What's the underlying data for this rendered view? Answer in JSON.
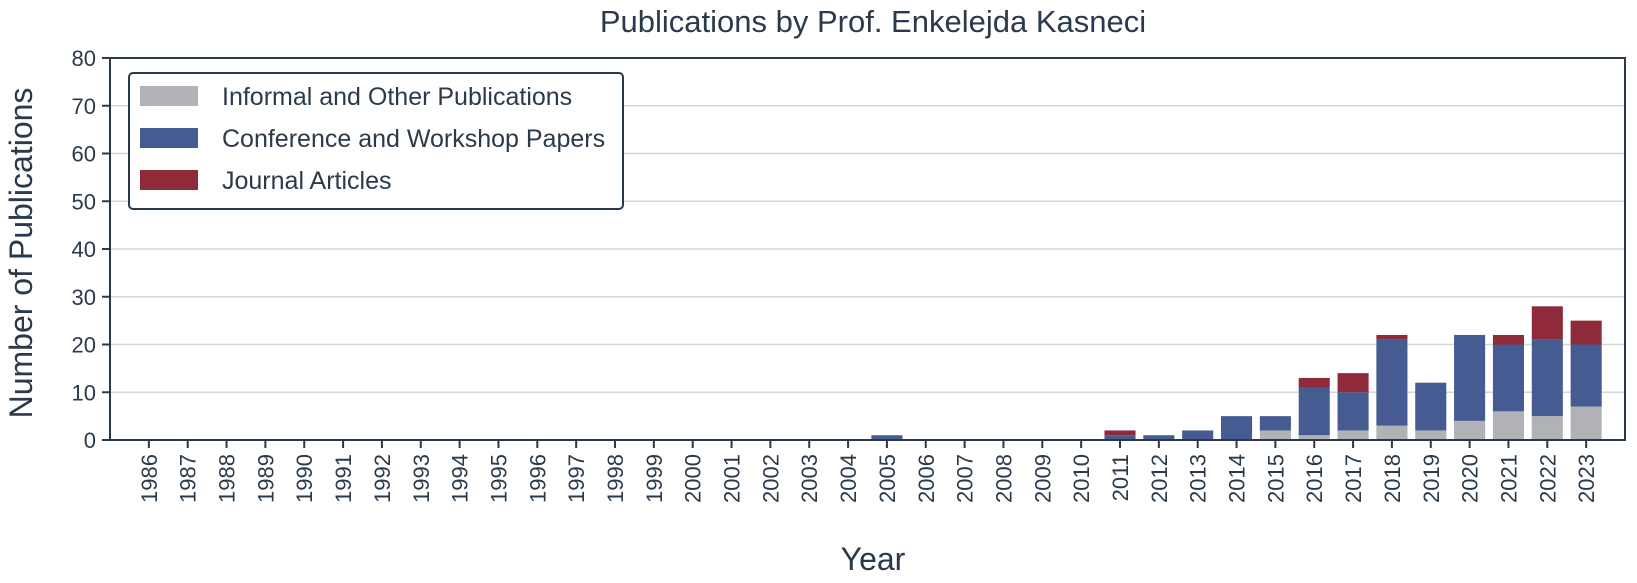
{
  "chart_data": {
    "type": "bar",
    "stacked": true,
    "title": "Publications by Prof. Enkelejda Kasneci",
    "xlabel": "Year",
    "ylabel": "Number of Publications",
    "ylim": [
      0,
      80
    ],
    "yticks": [
      "0",
      "10",
      "20",
      "30",
      "40",
      "50",
      "60",
      "70",
      "80"
    ],
    "grid": true,
    "legend_position": "top-left",
    "categories": [
      "1986",
      "1987",
      "1988",
      "1989",
      "1990",
      "1991",
      "1992",
      "1993",
      "1994",
      "1995",
      "1996",
      "1997",
      "1998",
      "1999",
      "2000",
      "2001",
      "2002",
      "2003",
      "2004",
      "2005",
      "2006",
      "2007",
      "2008",
      "2009",
      "2010",
      "2011",
      "2012",
      "2013",
      "2014",
      "2015",
      "2016",
      "2017",
      "2018",
      "2019",
      "2020",
      "2021",
      "2022",
      "2023"
    ],
    "series": [
      {
        "name": "Informal and Other Publications",
        "color": "#b0b2b6",
        "values": [
          0,
          0,
          0,
          0,
          0,
          0,
          0,
          0,
          0,
          0,
          0,
          0,
          0,
          0,
          0,
          0,
          0,
          0,
          0,
          0,
          0,
          0,
          0,
          0,
          0,
          0,
          0,
          0,
          0,
          2,
          1,
          2,
          3,
          2,
          4,
          6,
          5,
          7
        ]
      },
      {
        "name": "Conference and Workshop Papers",
        "color": "#455b91",
        "values": [
          0,
          0,
          0,
          0,
          0,
          0,
          0,
          0,
          0,
          0,
          0,
          0,
          0,
          0,
          0,
          0,
          0,
          0,
          0,
          1,
          0,
          0,
          0,
          0,
          0,
          1,
          1,
          2,
          5,
          3,
          10,
          8,
          18,
          10,
          18,
          14,
          16,
          13
        ]
      },
      {
        "name": "Journal Articles",
        "color": "#8e2a3a",
        "values": [
          0,
          0,
          0,
          0,
          0,
          0,
          0,
          0,
          0,
          0,
          0,
          0,
          0,
          0,
          0,
          0,
          0,
          0,
          0,
          0,
          0,
          0,
          0,
          0,
          0,
          1,
          0,
          0,
          0,
          0,
          2,
          4,
          1,
          0,
          0,
          2,
          7,
          5
        ]
      }
    ]
  }
}
